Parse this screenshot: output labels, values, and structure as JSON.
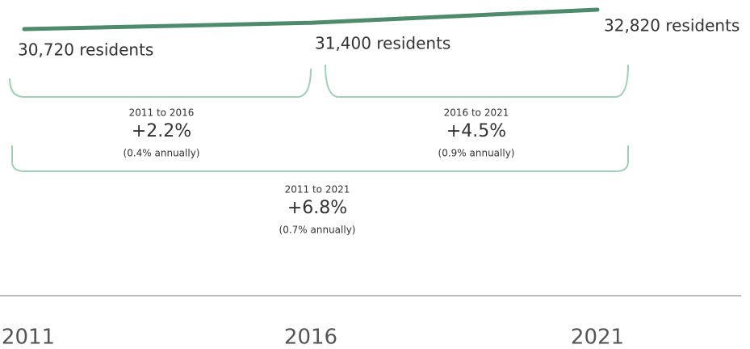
{
  "chart_data": {
    "type": "line",
    "categories": [
      "2011",
      "2016",
      "2021"
    ],
    "values": [
      30720,
      31400,
      32820
    ],
    "value_labels": [
      "30,720 residents",
      "31,400 residents",
      "32,820 residents"
    ],
    "color": "#4e8a6c",
    "annotations": [
      {
        "period": "2011 to 2016",
        "change": "+2.2%",
        "annual": "(0.4% annually)"
      },
      {
        "period": "2016 to 2021",
        "change": "+4.5%",
        "annual": "(0.9% annually)"
      },
      {
        "period": "2011 to 2021",
        "change": "+6.8%",
        "annual": "(0.7% annually)"
      }
    ]
  }
}
